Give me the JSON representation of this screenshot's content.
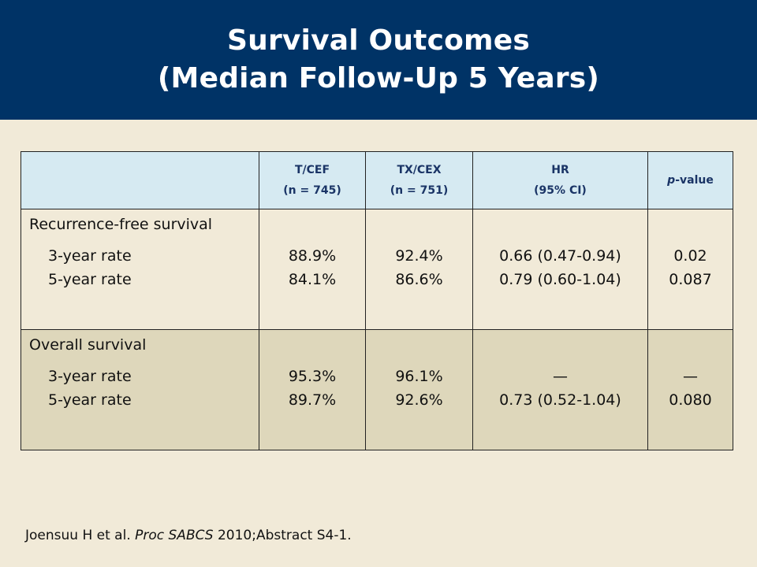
{
  "title": {
    "line1": "Survival Outcomes",
    "line2": "(Median Follow-Up 5 Years)"
  },
  "table": {
    "headers": {
      "tcef": {
        "name": "T/CEF",
        "n": "(n = 745)"
      },
      "txcex": {
        "name": "TX/CEX",
        "n": "(n = 751)"
      },
      "hr": {
        "name": "HR",
        "ci": "(95% CI)"
      },
      "pvalue": {
        "p": "p",
        "suffix": "-value"
      }
    },
    "groups": [
      {
        "title": "Recurrence-free survival",
        "rows": [
          {
            "label": "3-year rate",
            "tcef": "88.9%",
            "txcex": "92.4%",
            "hr": "0.66 (0.47-0.94)",
            "p": "0.02"
          },
          {
            "label": "5-year rate",
            "tcef": "84.1%",
            "txcex": "86.6%",
            "hr": "0.79 (0.60-1.04)",
            "p": "0.087"
          }
        ]
      },
      {
        "title": "Overall survival",
        "rows": [
          {
            "label": "3-year rate",
            "tcef": "95.3%",
            "txcex": "96.1%",
            "hr": "—",
            "p": "—"
          },
          {
            "label": "5-year rate",
            "tcef": "89.7%",
            "txcex": "92.6%",
            "hr": "0.73 (0.52-1.04)",
            "p": "0.080"
          }
        ]
      }
    ]
  },
  "citation": {
    "authors": "Joensuu H et al. ",
    "journal": "Proc SABCS",
    "rest": " 2010;Abstract S4-1."
  },
  "colors": {
    "title_bar": "#003366",
    "background": "#f1ead8",
    "header_fill": "#d6eaf2",
    "header_text": "#1a3466",
    "shaded_group": "#ded7bb"
  }
}
